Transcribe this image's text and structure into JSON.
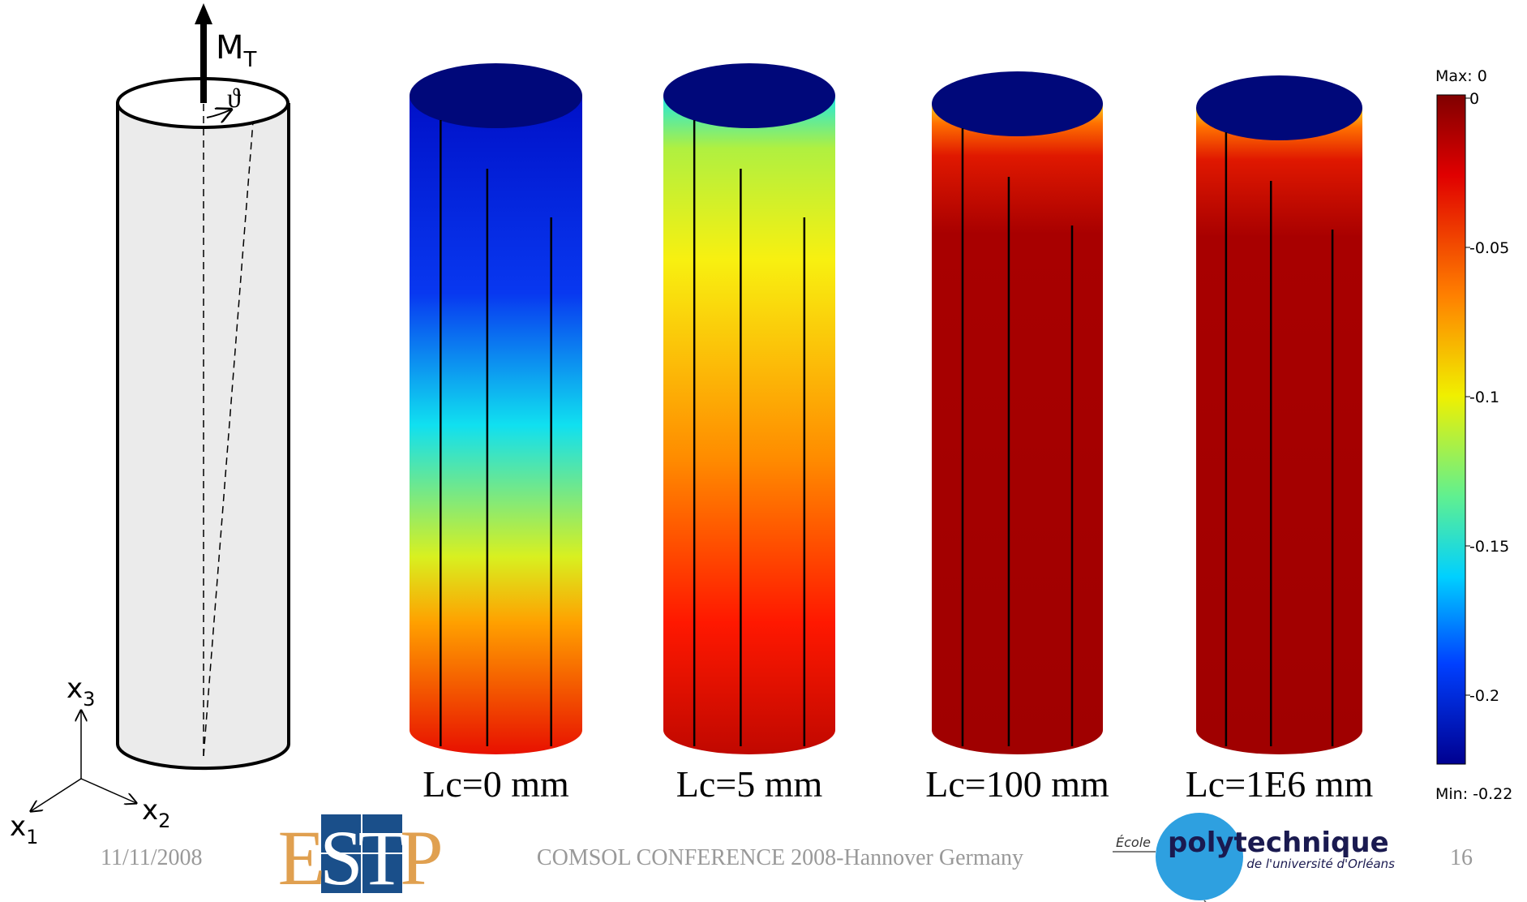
{
  "diagram": {
    "moment_label": "M",
    "moment_subscript": "T",
    "angle_label": "ϑ",
    "axes": [
      {
        "label": "x",
        "subscript": "3"
      },
      {
        "label": "x",
        "subscript": "2"
      },
      {
        "label": "x",
        "subscript": "1"
      }
    ]
  },
  "results": {
    "captions": [
      "Lc=0 mm",
      "Lc=5 mm",
      "Lc=100 mm",
      "Lc=1E6 mm"
    ]
  },
  "colorbar": {
    "max_label": "Max: 0",
    "min_label": "Min: -0.22",
    "ticks": [
      "0",
      "-0.05",
      "-0.1",
      "-0.15",
      "-0.2"
    ]
  },
  "footer": {
    "date": "11/11/2008",
    "conference": "COMSOL CONFERENCE 2008-Hannover Germany",
    "page": "16",
    "logo_left": [
      "E",
      "S",
      "T",
      "P"
    ],
    "logo_right": {
      "ecole": "École",
      "name": "polytechnique",
      "subtitle": "de l'université d'Orléans"
    }
  }
}
